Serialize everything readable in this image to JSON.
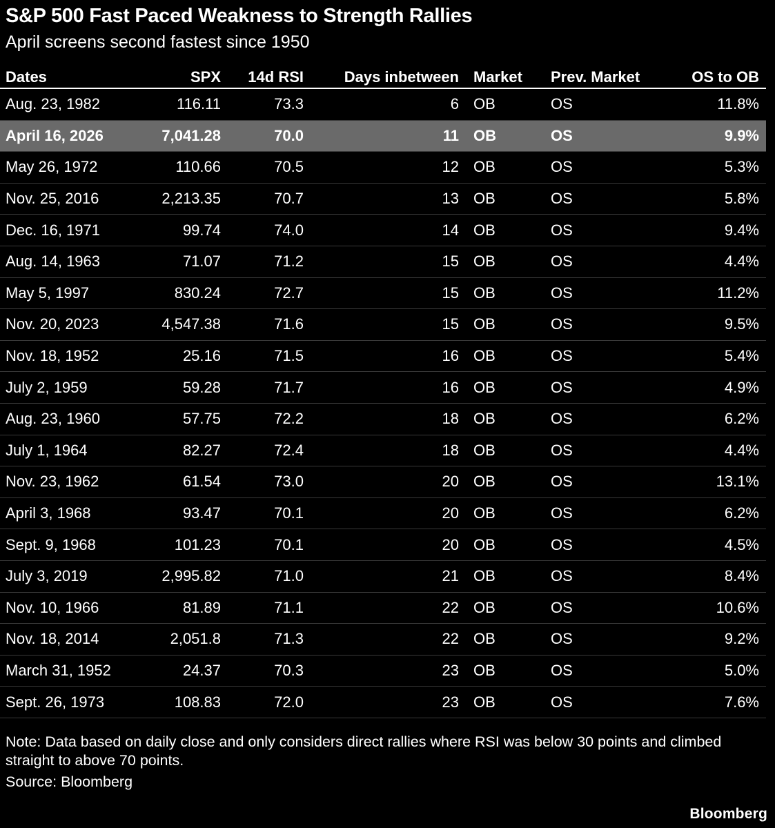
{
  "title": "S&P 500 Fast Paced Weakness to Strength Rallies",
  "subtitle": "April screens second fastest since 1950",
  "chart_data": {
    "type": "table",
    "columns": [
      {
        "label": "Dates",
        "align": "left"
      },
      {
        "label": "SPX",
        "align": "right"
      },
      {
        "label": "14d RSI",
        "align": "right"
      },
      {
        "label": "Days inbetween",
        "align": "right"
      },
      {
        "label": "Market",
        "align": "left"
      },
      {
        "label": "Prev. Market",
        "align": "left"
      },
      {
        "label": "OS to OB",
        "align": "right"
      }
    ],
    "rows": [
      {
        "date": "Aug. 23, 1982",
        "spx": "116.11",
        "rsi": "73.3",
        "days": "6",
        "market": "OB",
        "prev_market": "OS",
        "os_to_ob": "11.8%",
        "highlighted": false
      },
      {
        "date": "April 16, 2026",
        "spx": "7,041.28",
        "rsi": "70.0",
        "days": "11",
        "market": "OB",
        "prev_market": "OS",
        "os_to_ob": "9.9%",
        "highlighted": true
      },
      {
        "date": "May 26, 1972",
        "spx": "110.66",
        "rsi": "70.5",
        "days": "12",
        "market": "OB",
        "prev_market": "OS",
        "os_to_ob": "5.3%",
        "highlighted": false
      },
      {
        "date": "Nov. 25, 2016",
        "spx": "2,213.35",
        "rsi": "70.7",
        "days": "13",
        "market": "OB",
        "prev_market": "OS",
        "os_to_ob": "5.8%",
        "highlighted": false
      },
      {
        "date": "Dec. 16, 1971",
        "spx": "99.74",
        "rsi": "74.0",
        "days": "14",
        "market": "OB",
        "prev_market": "OS",
        "os_to_ob": "9.4%",
        "highlighted": false
      },
      {
        "date": "Aug. 14, 1963",
        "spx": "71.07",
        "rsi": "71.2",
        "days": "15",
        "market": "OB",
        "prev_market": "OS",
        "os_to_ob": "4.4%",
        "highlighted": false
      },
      {
        "date": "May 5, 1997",
        "spx": "830.24",
        "rsi": "72.7",
        "days": "15",
        "market": "OB",
        "prev_market": "OS",
        "os_to_ob": "11.2%",
        "highlighted": false
      },
      {
        "date": "Nov. 20, 2023",
        "spx": "4,547.38",
        "rsi": "71.6",
        "days": "15",
        "market": "OB",
        "prev_market": "OS",
        "os_to_ob": "9.5%",
        "highlighted": false
      },
      {
        "date": "Nov. 18, 1952",
        "spx": "25.16",
        "rsi": "71.5",
        "days": "16",
        "market": "OB",
        "prev_market": "OS",
        "os_to_ob": "5.4%",
        "highlighted": false
      },
      {
        "date": "July 2, 1959",
        "spx": "59.28",
        "rsi": "71.7",
        "days": "16",
        "market": "OB",
        "prev_market": "OS",
        "os_to_ob": "4.9%",
        "highlighted": false
      },
      {
        "date": "Aug. 23, 1960",
        "spx": "57.75",
        "rsi": "72.2",
        "days": "18",
        "market": "OB",
        "prev_market": "OS",
        "os_to_ob": "6.2%",
        "highlighted": false
      },
      {
        "date": "July 1, 1964",
        "spx": "82.27",
        "rsi": "72.4",
        "days": "18",
        "market": "OB",
        "prev_market": "OS",
        "os_to_ob": "4.4%",
        "highlighted": false
      },
      {
        "date": "Nov. 23, 1962",
        "spx": "61.54",
        "rsi": "73.0",
        "days": "20",
        "market": "OB",
        "prev_market": "OS",
        "os_to_ob": "13.1%",
        "highlighted": false
      },
      {
        "date": "April 3, 1968",
        "spx": "93.47",
        "rsi": "70.1",
        "days": "20",
        "market": "OB",
        "prev_market": "OS",
        "os_to_ob": "6.2%",
        "highlighted": false
      },
      {
        "date": "Sept. 9, 1968",
        "spx": "101.23",
        "rsi": "70.1",
        "days": "20",
        "market": "OB",
        "prev_market": "OS",
        "os_to_ob": "4.5%",
        "highlighted": false
      },
      {
        "date": "July 3, 2019",
        "spx": "2,995.82",
        "rsi": "71.0",
        "days": "21",
        "market": "OB",
        "prev_market": "OS",
        "os_to_ob": "8.4%",
        "highlighted": false
      },
      {
        "date": "Nov. 10, 1966",
        "spx": "81.89",
        "rsi": "71.1",
        "days": "22",
        "market": "OB",
        "prev_market": "OS",
        "os_to_ob": "10.6%",
        "highlighted": false
      },
      {
        "date": "Nov. 18, 2014",
        "spx": "2,051.8",
        "rsi": "71.3",
        "days": "22",
        "market": "OB",
        "prev_market": "OS",
        "os_to_ob": "9.2%",
        "highlighted": false
      },
      {
        "date": "March 31, 1952",
        "spx": "24.37",
        "rsi": "70.3",
        "days": "23",
        "market": "OB",
        "prev_market": "OS",
        "os_to_ob": "5.0%",
        "highlighted": false
      },
      {
        "date": "Sept. 26, 1973",
        "spx": "108.83",
        "rsi": "72.0",
        "days": "23",
        "market": "OB",
        "prev_market": "OS",
        "os_to_ob": "7.6%",
        "highlighted": false
      }
    ],
    "highlighted_row_date": "April 16, 2026",
    "legend_position": "none",
    "grid": "row-dividers"
  },
  "footer": {
    "note": "Note: Data based on daily close and only considers direct rallies where RSI was below 30 points and climbed straight to above 70 points.",
    "source": "Source: Bloomberg",
    "logo": "Bloomberg"
  },
  "colors": {
    "background": "#000000",
    "text": "#ffffff",
    "highlight_row_background": "#6a6a6a",
    "row_divider": "#3a3a3a",
    "header_rule": "#ffffff"
  }
}
